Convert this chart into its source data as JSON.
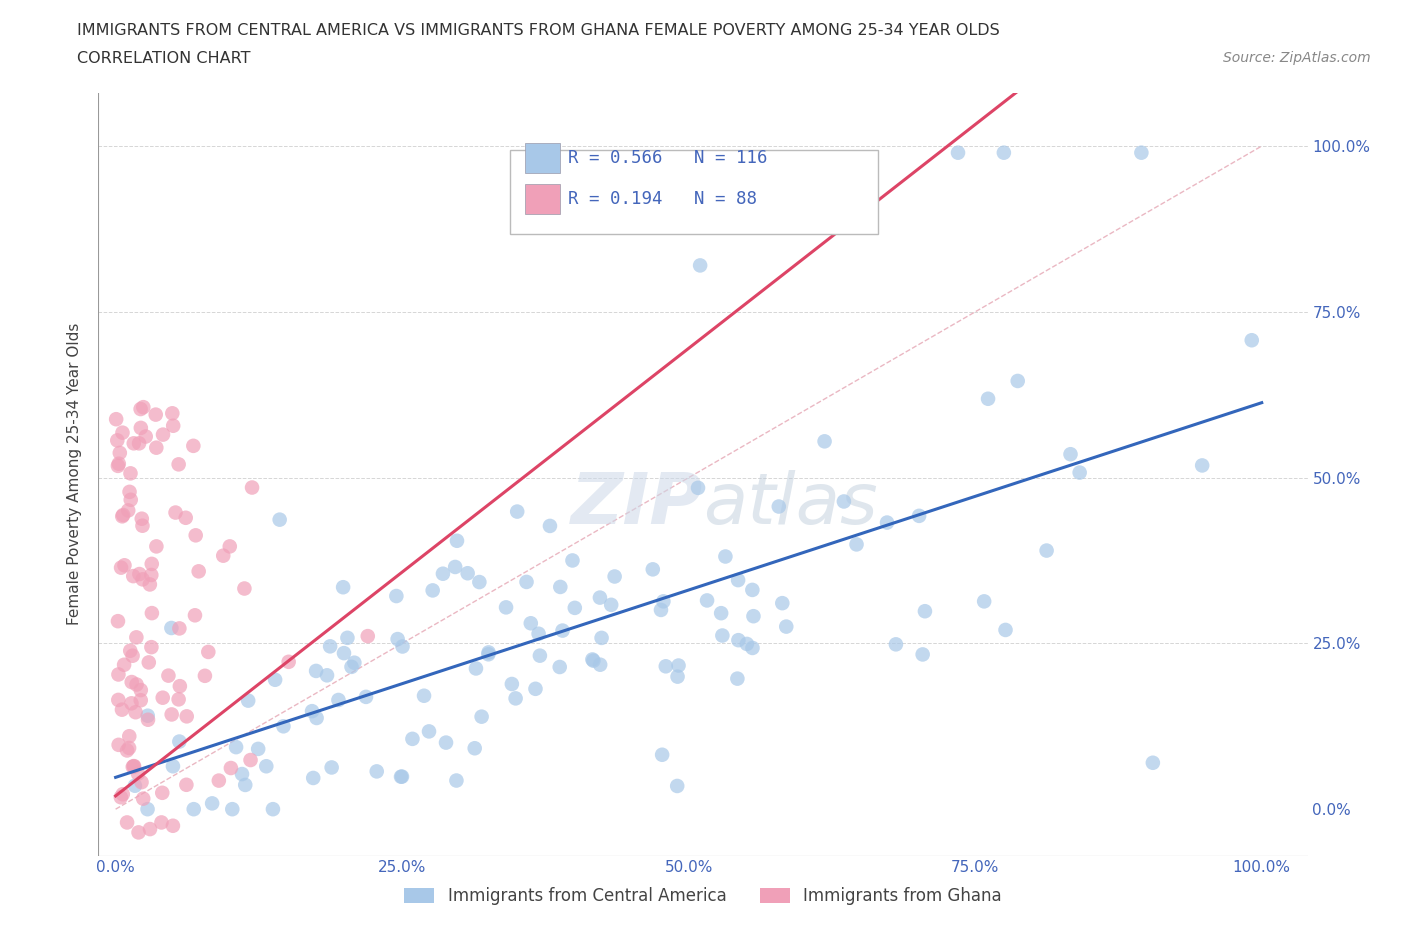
{
  "title_line1": "IMMIGRANTS FROM CENTRAL AMERICA VS IMMIGRANTS FROM GHANA FEMALE POVERTY AMONG 25-34 YEAR OLDS",
  "title_line2": "CORRELATION CHART",
  "source_text": "Source: ZipAtlas.com",
  "ylabel": "Female Poverty Among 25-34 Year Olds",
  "xlim": [
    -0.015,
    1.04
  ],
  "ylim": [
    -0.07,
    1.08
  ],
  "xtick_positions": [
    0.0,
    0.25,
    0.5,
    0.75,
    1.0
  ],
  "xticklabels": [
    "0.0%",
    "25.0%",
    "50.0%",
    "75.0%",
    "100.0%"
  ],
  "ytick_positions": [
    0.0,
    0.25,
    0.5,
    0.75,
    1.0
  ],
  "ytick_labels_right": [
    "0.0%",
    "25.0%",
    "50.0%",
    "75.0%",
    "100.0%"
  ],
  "R_blue": 0.566,
  "N_blue": 116,
  "R_pink": 0.194,
  "N_pink": 88,
  "color_blue": "#a8c8e8",
  "color_pink": "#f0a0b8",
  "color_line_blue": "#3366bb",
  "color_line_pink": "#dd4466",
  "color_diag": "#e8b0bc",
  "legend_label_blue": "Immigrants from Central America",
  "legend_label_pink": "Immigrants from Ghana",
  "watermark": "ZIPatlas",
  "background_color": "#ffffff",
  "grid_color": "#cccccc",
  "title_color": "#333333",
  "axis_label_color": "#444444",
  "tick_label_color": "#4466bb"
}
